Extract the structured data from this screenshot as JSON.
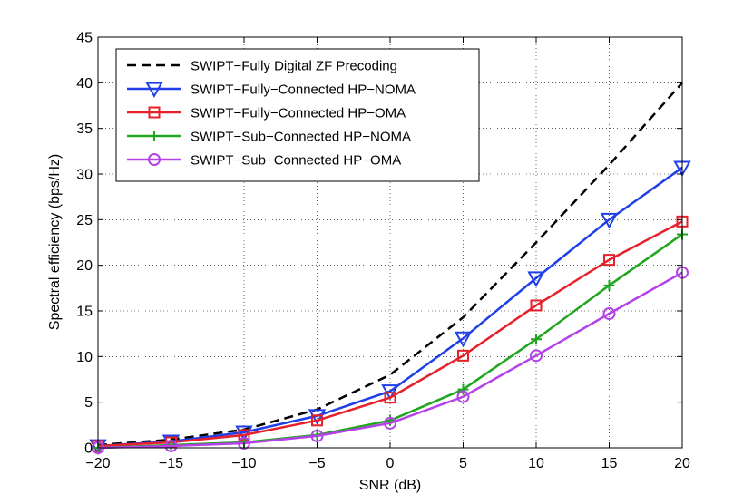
{
  "chart_data": {
    "type": "line",
    "title": "",
    "xlabel": "SNR (dB)",
    "ylabel": "Spectral efficiency (bps/Hz)",
    "xlim": [
      -20,
      20
    ],
    "ylim": [
      0,
      45
    ],
    "xticks": [
      -20,
      -15,
      -10,
      -5,
      0,
      5,
      10,
      15,
      20
    ],
    "yticks": [
      0,
      5,
      10,
      15,
      20,
      25,
      30,
      35,
      40,
      45
    ],
    "xtick_labels": [
      "−20",
      "−15",
      "−10",
      "−5",
      "0",
      "5",
      "10",
      "15",
      "20"
    ],
    "ytick_labels": [
      "0",
      "5",
      "10",
      "15",
      "20",
      "25",
      "30",
      "35",
      "40",
      "45"
    ],
    "grid": true,
    "legend_position": "top-left",
    "x": [
      -20,
      -15,
      -10,
      -5,
      0,
      5,
      10,
      15,
      20
    ],
    "series": [
      {
        "name": "SWIPT−Fully Digital ZF Precoding",
        "color": "#000000",
        "dash": true,
        "marker": "none",
        "values": [
          0.3,
          0.9,
          2.0,
          4.2,
          8.0,
          14.3,
          22.5,
          31.0,
          40.0
        ]
      },
      {
        "name": "SWIPT−Fully−Connected HP−NOMA",
        "color": "#1f3fe8",
        "dash": false,
        "marker": "triangle-down",
        "values": [
          0.2,
          0.7,
          1.7,
          3.5,
          6.2,
          12.0,
          18.6,
          25.0,
          30.7
        ]
      },
      {
        "name": "SWIPT−Fully−Connected HP−OMA",
        "color": "#e8202a",
        "dash": false,
        "marker": "square",
        "values": [
          0.2,
          0.6,
          1.4,
          3.0,
          5.5,
          10.1,
          15.6,
          20.6,
          24.8
        ]
      },
      {
        "name": "SWIPT−Sub−Connected HP−NOMA",
        "color": "#1fa51f",
        "dash": false,
        "marker": "plus",
        "values": [
          0.0,
          0.3,
          0.6,
          1.4,
          3.0,
          6.4,
          11.9,
          17.8,
          23.4
        ]
      },
      {
        "name": "SWIPT−Sub−Connected HP−OMA",
        "color": "#b442e8",
        "dash": false,
        "marker": "circle",
        "values": [
          0.0,
          0.2,
          0.5,
          1.3,
          2.7,
          5.6,
          10.1,
          14.7,
          19.2
        ]
      }
    ]
  }
}
